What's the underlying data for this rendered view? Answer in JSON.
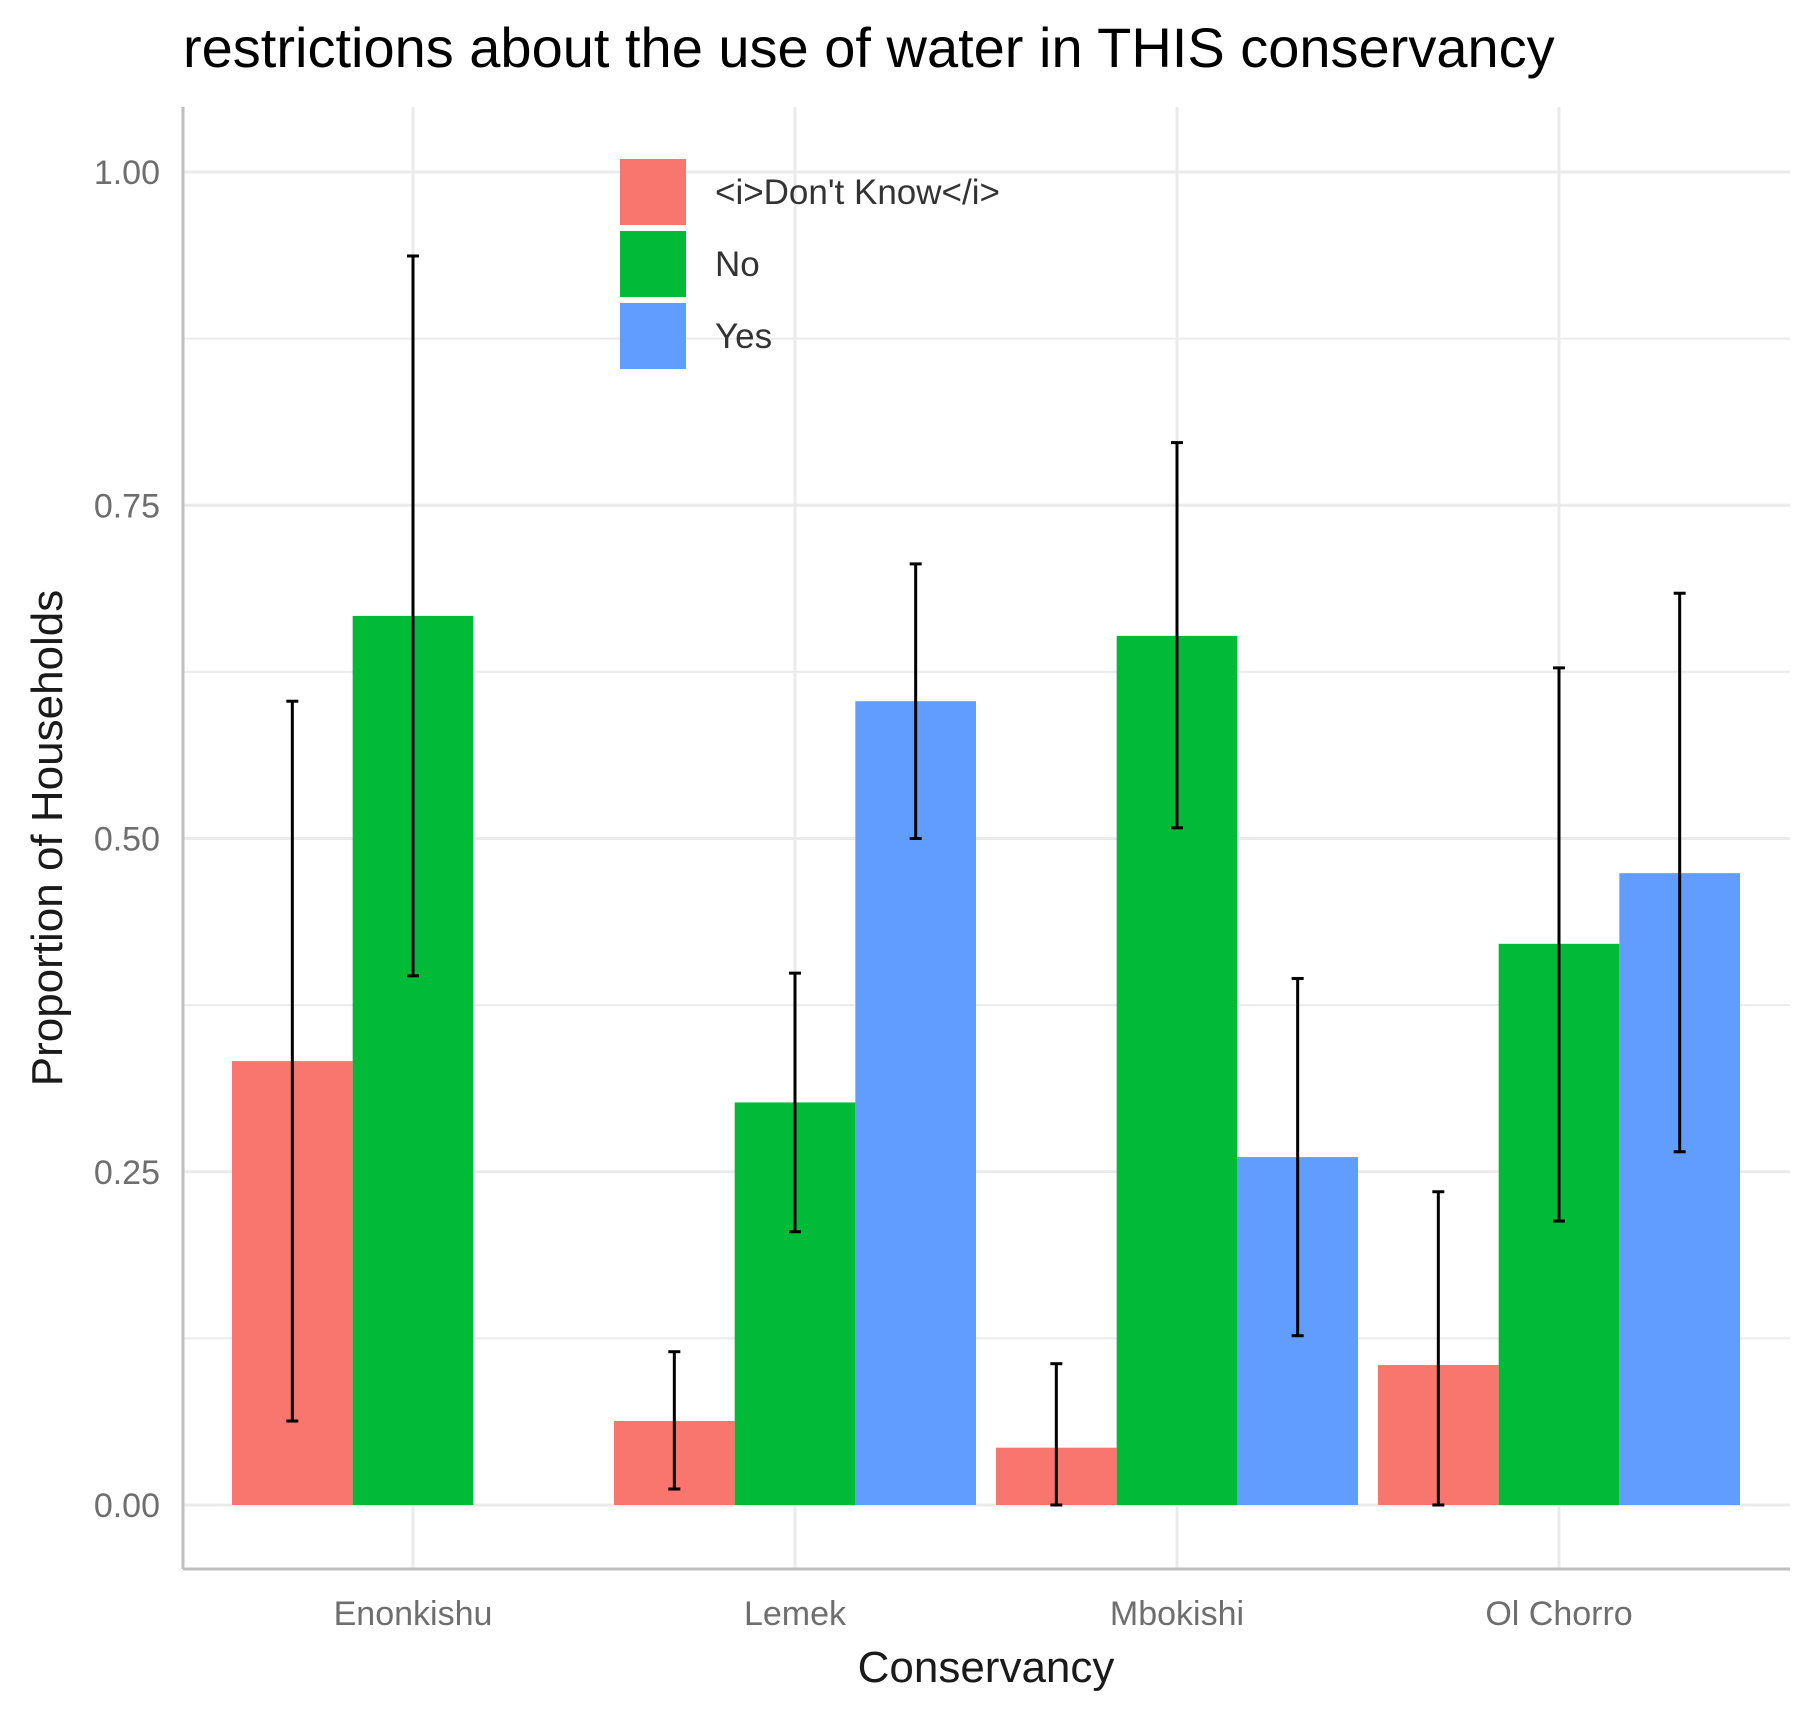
{
  "chart_data": {
    "type": "bar",
    "title": "restrictions about the use of water in THIS conservancy",
    "xlabel": "Conservancy",
    "ylabel": "Proportion of Households",
    "categories": [
      "Enonkishu",
      "Lemek",
      "Mbokishi",
      "Ol Chorro"
    ],
    "ylim": [
      -0.05,
      1.05
    ],
    "yticks": [
      0.0,
      0.25,
      0.5,
      0.75,
      1.0
    ],
    "ytick_labels": [
      "0.00",
      "0.25",
      "0.50",
      "0.75",
      "1.00"
    ],
    "grid": true,
    "legend_position": "top-center",
    "series": [
      {
        "name": "<i>Don't Know</i>",
        "color": "#F8766D",
        "values": [
          0.333,
          0.063,
          0.043,
          0.105
        ],
        "error_low": [
          0.063,
          0.012,
          0.0,
          0.0
        ],
        "error_high": [
          0.603,
          0.115,
          0.106,
          0.235
        ]
      },
      {
        "name": "No",
        "color": "#00BA38",
        "values": [
          0.667,
          0.302,
          0.652,
          0.421
        ],
        "error_low": [
          0.397,
          0.205,
          0.508,
          0.213
        ],
        "error_high": [
          0.937,
          0.399,
          0.797,
          0.628
        ]
      },
      {
        "name": "Yes",
        "color": "#619CFF",
        "values": [
          null,
          0.603,
          0.261,
          0.474
        ],
        "error_low": [
          null,
          0.5,
          0.127,
          0.265
        ],
        "error_high": [
          null,
          0.706,
          0.395,
          0.684
        ]
      }
    ]
  }
}
